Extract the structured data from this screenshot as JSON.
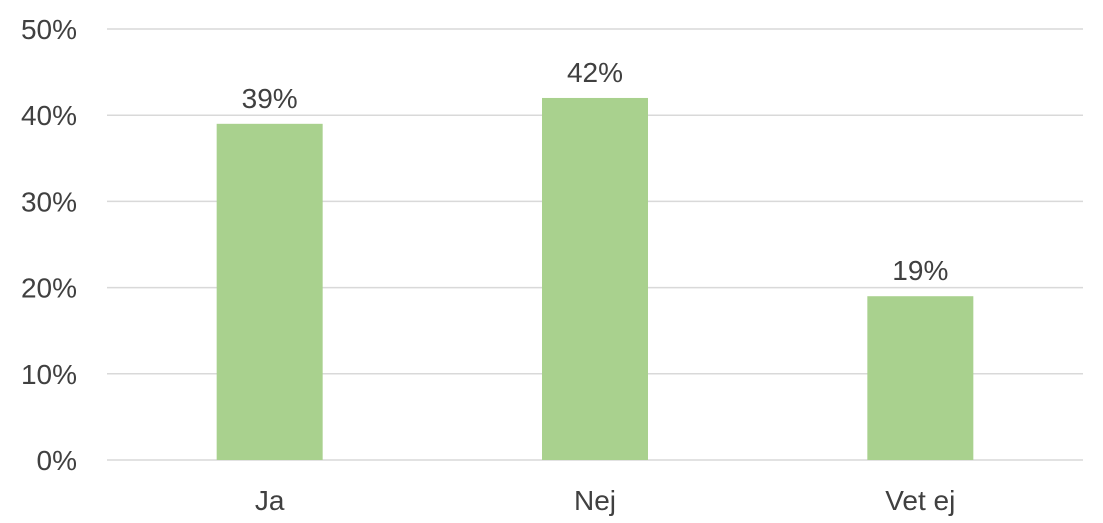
{
  "chart_data": {
    "type": "bar",
    "categories": [
      "Ja",
      "Nej",
      "Vet ej"
    ],
    "values": [
      39,
      42,
      19
    ],
    "data_labels": [
      "39%",
      "42%",
      "19%"
    ],
    "y_ticks": [
      0,
      10,
      20,
      30,
      40,
      50
    ],
    "y_tick_labels": [
      "0%",
      "10%",
      "20%",
      "30%",
      "40%",
      "50%"
    ],
    "ylim": [
      0,
      50
    ],
    "grid": true,
    "legend": "none",
    "bar_color": "#a9d18e",
    "grid_color": "#d9d9d9",
    "text_color": "#404040"
  }
}
